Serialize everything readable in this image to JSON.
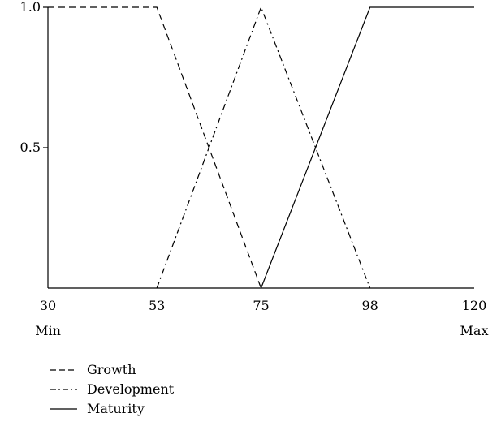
{
  "chart_data": {
    "type": "line",
    "title": "",
    "xlabel": "",
    "ylabel": "",
    "xlim": [
      30,
      120
    ],
    "ylim": [
      0,
      1
    ],
    "x_ticks": [
      {
        "value": 30,
        "label": "30"
      },
      {
        "value": 53,
        "label": "53"
      },
      {
        "value": 75,
        "label": "75"
      },
      {
        "value": 98,
        "label": "98"
      },
      {
        "value": 120,
        "label": "120"
      }
    ],
    "y_ticks": [
      {
        "value": 0.5,
        "label": "0.5"
      },
      {
        "value": 1.0,
        "label": "1.0"
      }
    ],
    "x_extreme_labels": {
      "min": "Min",
      "max": "Max"
    },
    "grid": false,
    "legend_position": "bottom-left",
    "series": [
      {
        "name": "Growth",
        "style": "dashed",
        "color": "#000000",
        "points": [
          [
            30,
            1.0
          ],
          [
            53,
            1.0
          ],
          [
            75,
            0.0
          ]
        ]
      },
      {
        "name": "Development",
        "style": "dash-dot",
        "color": "#000000",
        "points": [
          [
            53,
            0.0
          ],
          [
            75,
            1.0
          ],
          [
            98,
            0.0
          ]
        ]
      },
      {
        "name": "Maturity",
        "style": "solid",
        "color": "#000000",
        "points": [
          [
            75,
            0.0
          ],
          [
            98,
            1.0
          ],
          [
            120,
            1.0
          ]
        ]
      }
    ]
  }
}
